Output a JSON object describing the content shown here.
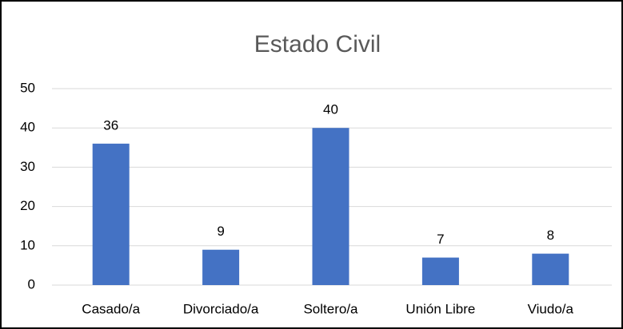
{
  "chart_data": {
    "type": "bar",
    "title": "Estado Civil",
    "categories": [
      "Casado/a",
      "Divorciado/a",
      "Soltero/a",
      "Unión Libre",
      "Viudo/a"
    ],
    "values": [
      36,
      9,
      40,
      7,
      8
    ],
    "color": "#4472c4",
    "ylim": [
      0,
      50
    ],
    "yticks": [
      0,
      10,
      20,
      30,
      40,
      50
    ],
    "grid": true
  }
}
